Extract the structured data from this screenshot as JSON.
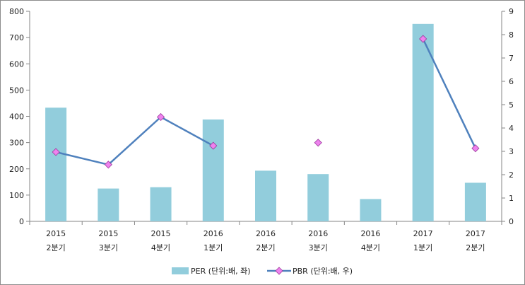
{
  "chart_data": {
    "type": "bar+line",
    "categories": [
      [
        "2015",
        "2분기"
      ],
      [
        "2015",
        "3분기"
      ],
      [
        "2015",
        "4분기"
      ],
      [
        "2016",
        "1분기"
      ],
      [
        "2016",
        "2분기"
      ],
      [
        "2016",
        "3분기"
      ],
      [
        "2016",
        "4분기"
      ],
      [
        "2017",
        "1분기"
      ],
      [
        "2017",
        "2분기"
      ]
    ],
    "series": [
      {
        "name": "PER (단위:배, 좌)",
        "type": "bar",
        "axis": "left",
        "color": "#92cddc",
        "values": [
          433,
          125,
          130,
          388,
          193,
          180,
          85,
          752,
          147
        ]
      },
      {
        "name": "PBR (단위:배, 우)",
        "type": "line",
        "axis": "right",
        "color": "#4f81bd",
        "marker_color": "#ee82ee",
        "values": [
          2.97,
          2.43,
          4.47,
          3.24,
          null,
          3.37,
          null,
          7.82,
          3.13
        ]
      }
    ],
    "y_left": {
      "min": 0,
      "max": 800,
      "ticks": [
        0,
        100,
        200,
        300,
        400,
        500,
        600,
        700,
        800
      ]
    },
    "y_right": {
      "min": 0,
      "max": 9,
      "ticks": [
        0,
        1,
        2,
        3,
        4,
        5,
        6,
        7,
        8,
        9
      ]
    },
    "grid": false,
    "legend": "bottom"
  }
}
